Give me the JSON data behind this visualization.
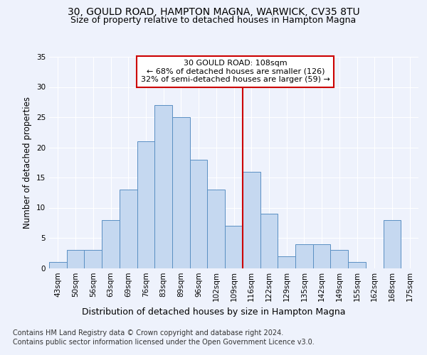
{
  "title1": "30, GOULD ROAD, HAMPTON MAGNA, WARWICK, CV35 8TU",
  "title2": "Size of property relative to detached houses in Hampton Magna",
  "xlabel": "Distribution of detached houses by size in Hampton Magna",
  "ylabel": "Number of detached properties",
  "footnote1": "Contains HM Land Registry data © Crown copyright and database right 2024.",
  "footnote2": "Contains public sector information licensed under the Open Government Licence v3.0.",
  "bar_labels": [
    "43sqm",
    "50sqm",
    "56sqm",
    "63sqm",
    "69sqm",
    "76sqm",
    "83sqm",
    "89sqm",
    "96sqm",
    "102sqm",
    "109sqm",
    "116sqm",
    "122sqm",
    "129sqm",
    "135sqm",
    "142sqm",
    "149sqm",
    "155sqm",
    "162sqm",
    "168sqm",
    "175sqm"
  ],
  "bar_values": [
    1,
    3,
    3,
    8,
    13,
    21,
    27,
    25,
    18,
    13,
    7,
    16,
    9,
    2,
    4,
    4,
    3,
    1,
    0,
    8,
    0
  ],
  "bar_color": "#c5d8f0",
  "bar_edge_color": "#5a8fc3",
  "reference_line_x": 10.5,
  "annotation_title": "30 GOULD ROAD: 108sqm",
  "annotation_line1": "← 68% of detached houses are smaller (126)",
  "annotation_line2": "32% of semi-detached houses are larger (59) →",
  "annotation_box_color": "#ffffff",
  "annotation_box_edge_color": "#cc0000",
  "vline_color": "#cc0000",
  "ylim": [
    0,
    35
  ],
  "yticks": [
    0,
    5,
    10,
    15,
    20,
    25,
    30,
    35
  ],
  "background_color": "#eef2fc",
  "title1_fontsize": 10,
  "title2_fontsize": 9,
  "xlabel_fontsize": 9,
  "ylabel_fontsize": 8.5,
  "tick_fontsize": 7.5,
  "annotation_fontsize": 8,
  "footnote_fontsize": 7
}
